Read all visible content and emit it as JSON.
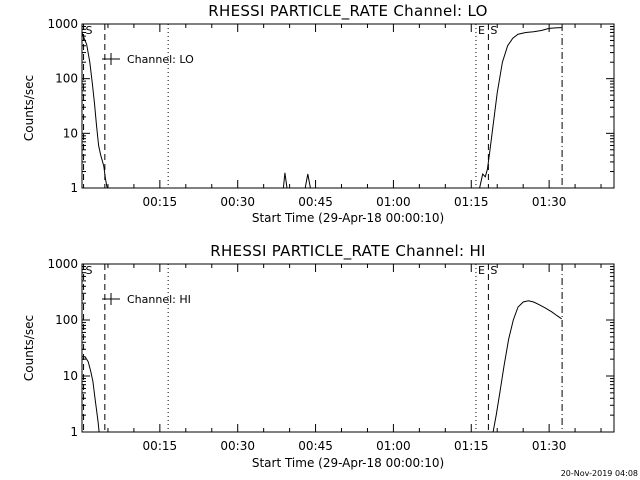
{
  "timestamp": "20-Nov-2019 04:08",
  "chart_data": [
    {
      "type": "line",
      "title": "RHESSI PARTICLE_RATE Channel: LO",
      "xlabel": "Start Time (29-Apr-18 00:00:10)",
      "ylabel": "Counts/sec",
      "yscale": "log",
      "ylim": [
        1,
        1000
      ],
      "xlim_minutes": [
        0,
        102.5
      ],
      "x_ticks": [
        {
          "label": "00:15",
          "minutes": 15
        },
        {
          "label": "00:30",
          "minutes": 30
        },
        {
          "label": "00:45",
          "minutes": 45
        },
        {
          "label": "01:00",
          "minutes": 60
        },
        {
          "label": "01:15",
          "minutes": 75
        },
        {
          "label": "01:30",
          "minutes": 90
        }
      ],
      "y_ticks": [
        {
          "label": "1",
          "value": 1
        },
        {
          "label": "10",
          "value": 10
        },
        {
          "label": "100",
          "value": 100
        },
        {
          "label": "1000",
          "value": 1000
        }
      ],
      "legend": {
        "label": "Channel: LO",
        "placement": "top-left"
      },
      "event_lines": [
        {
          "minutes": 0.3,
          "style": "dashed",
          "label": "S"
        },
        {
          "minutes": 4.4,
          "style": "dashed",
          "label": ""
        },
        {
          "minutes": 16.6,
          "style": "dotted",
          "label": ""
        },
        {
          "minutes": 75.9,
          "style": "dotted",
          "label": "E"
        },
        {
          "minutes": 78.3,
          "style": "dashed",
          "label": "S"
        },
        {
          "minutes": 92.5,
          "style": "dashdot",
          "label": ""
        }
      ],
      "series": [
        {
          "name": "Channel: LO",
          "segments": [
            {
              "x": [
                0.0,
                0.3,
                0.9,
                1.5,
                2.0,
                2.4,
                2.8,
                3.2,
                3.6,
                3.9,
                4.2,
                4.5,
                4.8,
                5.0
              ],
              "y": [
                700,
                580,
                420,
                200,
                80,
                35,
                14,
                6,
                4,
                3.2,
                2.5,
                1.5,
                1.05,
                1
              ]
            },
            {
              "x": [
                38.8,
                39.1,
                39.5
              ],
              "y": [
                1,
                1.9,
                1
              ]
            },
            {
              "x": [
                43.0,
                43.5,
                44.0
              ],
              "y": [
                1,
                1.8,
                1
              ]
            },
            {
              "x": [
                76.6,
                77.2,
                77.7,
                78.1,
                78.6,
                79.2,
                80.0,
                81.0,
                82.0,
                83.0,
                84.0,
                85.5,
                87.0,
                88.5,
                90.0,
                91.2,
                92.4
              ],
              "y": [
                1,
                1.8,
                1.6,
                2.2,
                5,
                14,
                55,
                200,
                400,
                550,
                650,
                700,
                720,
                760,
                830,
                850,
                860
              ]
            }
          ]
        }
      ]
    },
    {
      "type": "line",
      "title": "RHESSI PARTICLE_RATE Channel: HI",
      "xlabel": "Start Time (29-Apr-18 00:00:10)",
      "ylabel": "Counts/sec",
      "yscale": "log",
      "ylim": [
        1,
        1000
      ],
      "xlim_minutes": [
        0,
        102.5
      ],
      "x_ticks": [
        {
          "label": "00:15",
          "minutes": 15
        },
        {
          "label": "00:30",
          "minutes": 30
        },
        {
          "label": "00:45",
          "minutes": 45
        },
        {
          "label": "01:00",
          "minutes": 60
        },
        {
          "label": "01:15",
          "minutes": 75
        },
        {
          "label": "01:30",
          "minutes": 90
        }
      ],
      "y_ticks": [
        {
          "label": "1",
          "value": 1
        },
        {
          "label": "10",
          "value": 10
        },
        {
          "label": "100",
          "value": 100
        },
        {
          "label": "1000",
          "value": 1000
        }
      ],
      "legend": {
        "label": "Channel: HI",
        "placement": "top-left"
      },
      "event_lines": [
        {
          "minutes": 0.3,
          "style": "dashed",
          "label": "S"
        },
        {
          "minutes": 4.4,
          "style": "dashed",
          "label": ""
        },
        {
          "minutes": 16.6,
          "style": "dotted",
          "label": ""
        },
        {
          "minutes": 75.9,
          "style": "dotted",
          "label": "E"
        },
        {
          "minutes": 78.3,
          "style": "dashed",
          "label": "S"
        },
        {
          "minutes": 92.5,
          "style": "dashdot",
          "label": ""
        }
      ],
      "series": [
        {
          "name": "Channel: HI",
          "segments": [
            {
              "x": [
                0.0,
                0.6,
                1.2,
                1.7,
                2.1,
                2.5,
                2.8,
                3.1,
                3.3
              ],
              "y": [
                22,
                22,
                18,
                12,
                8,
                4,
                2.5,
                1.5,
                1
              ]
            },
            {
              "x": [
                79.2,
                79.8,
                80.5,
                81.3,
                82.2,
                83.1,
                84.0,
                85.0,
                86.0,
                87.0,
                88.0,
                89.2,
                90.5,
                91.5,
                92.4
              ],
              "y": [
                1,
                2,
                5,
                15,
                45,
                100,
                170,
                210,
                220,
                210,
                190,
                165,
                140,
                120,
                105
              ]
            }
          ]
        }
      ]
    }
  ]
}
